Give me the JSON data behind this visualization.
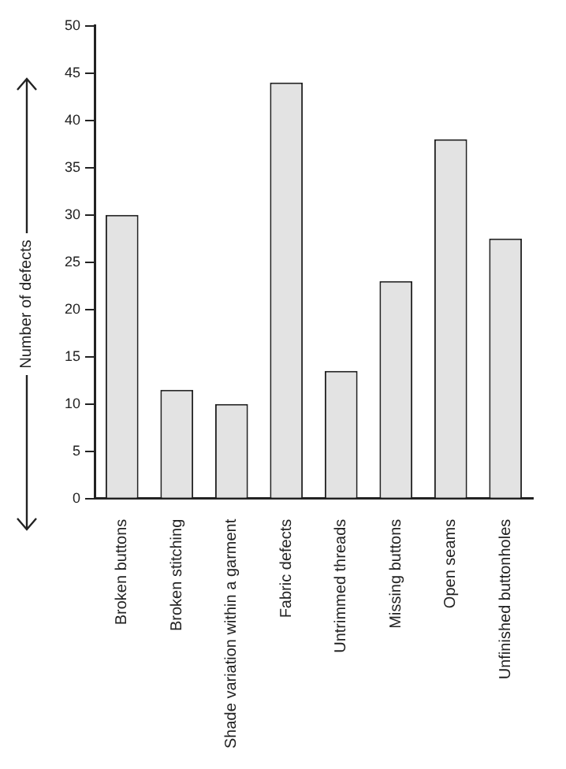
{
  "chart_data": {
    "type": "bar",
    "ylabel": "Number of defects",
    "categories": [
      "Broken buttons",
      "Broken stitching",
      "Shade variation within a garment",
      "Fabric defects",
      "Untrimmed threads",
      "Missing buttons",
      "Open seams",
      "Unfinished buttonholes"
    ],
    "values": [
      30,
      11.5,
      10,
      44,
      13.5,
      23,
      38,
      27.5
    ],
    "color": "#e3e3e3",
    "ylim": [
      0,
      50
    ],
    "yticks": [
      0,
      5,
      10,
      15,
      20,
      25,
      30,
      35,
      40,
      45,
      50
    ],
    "grid": false
  }
}
